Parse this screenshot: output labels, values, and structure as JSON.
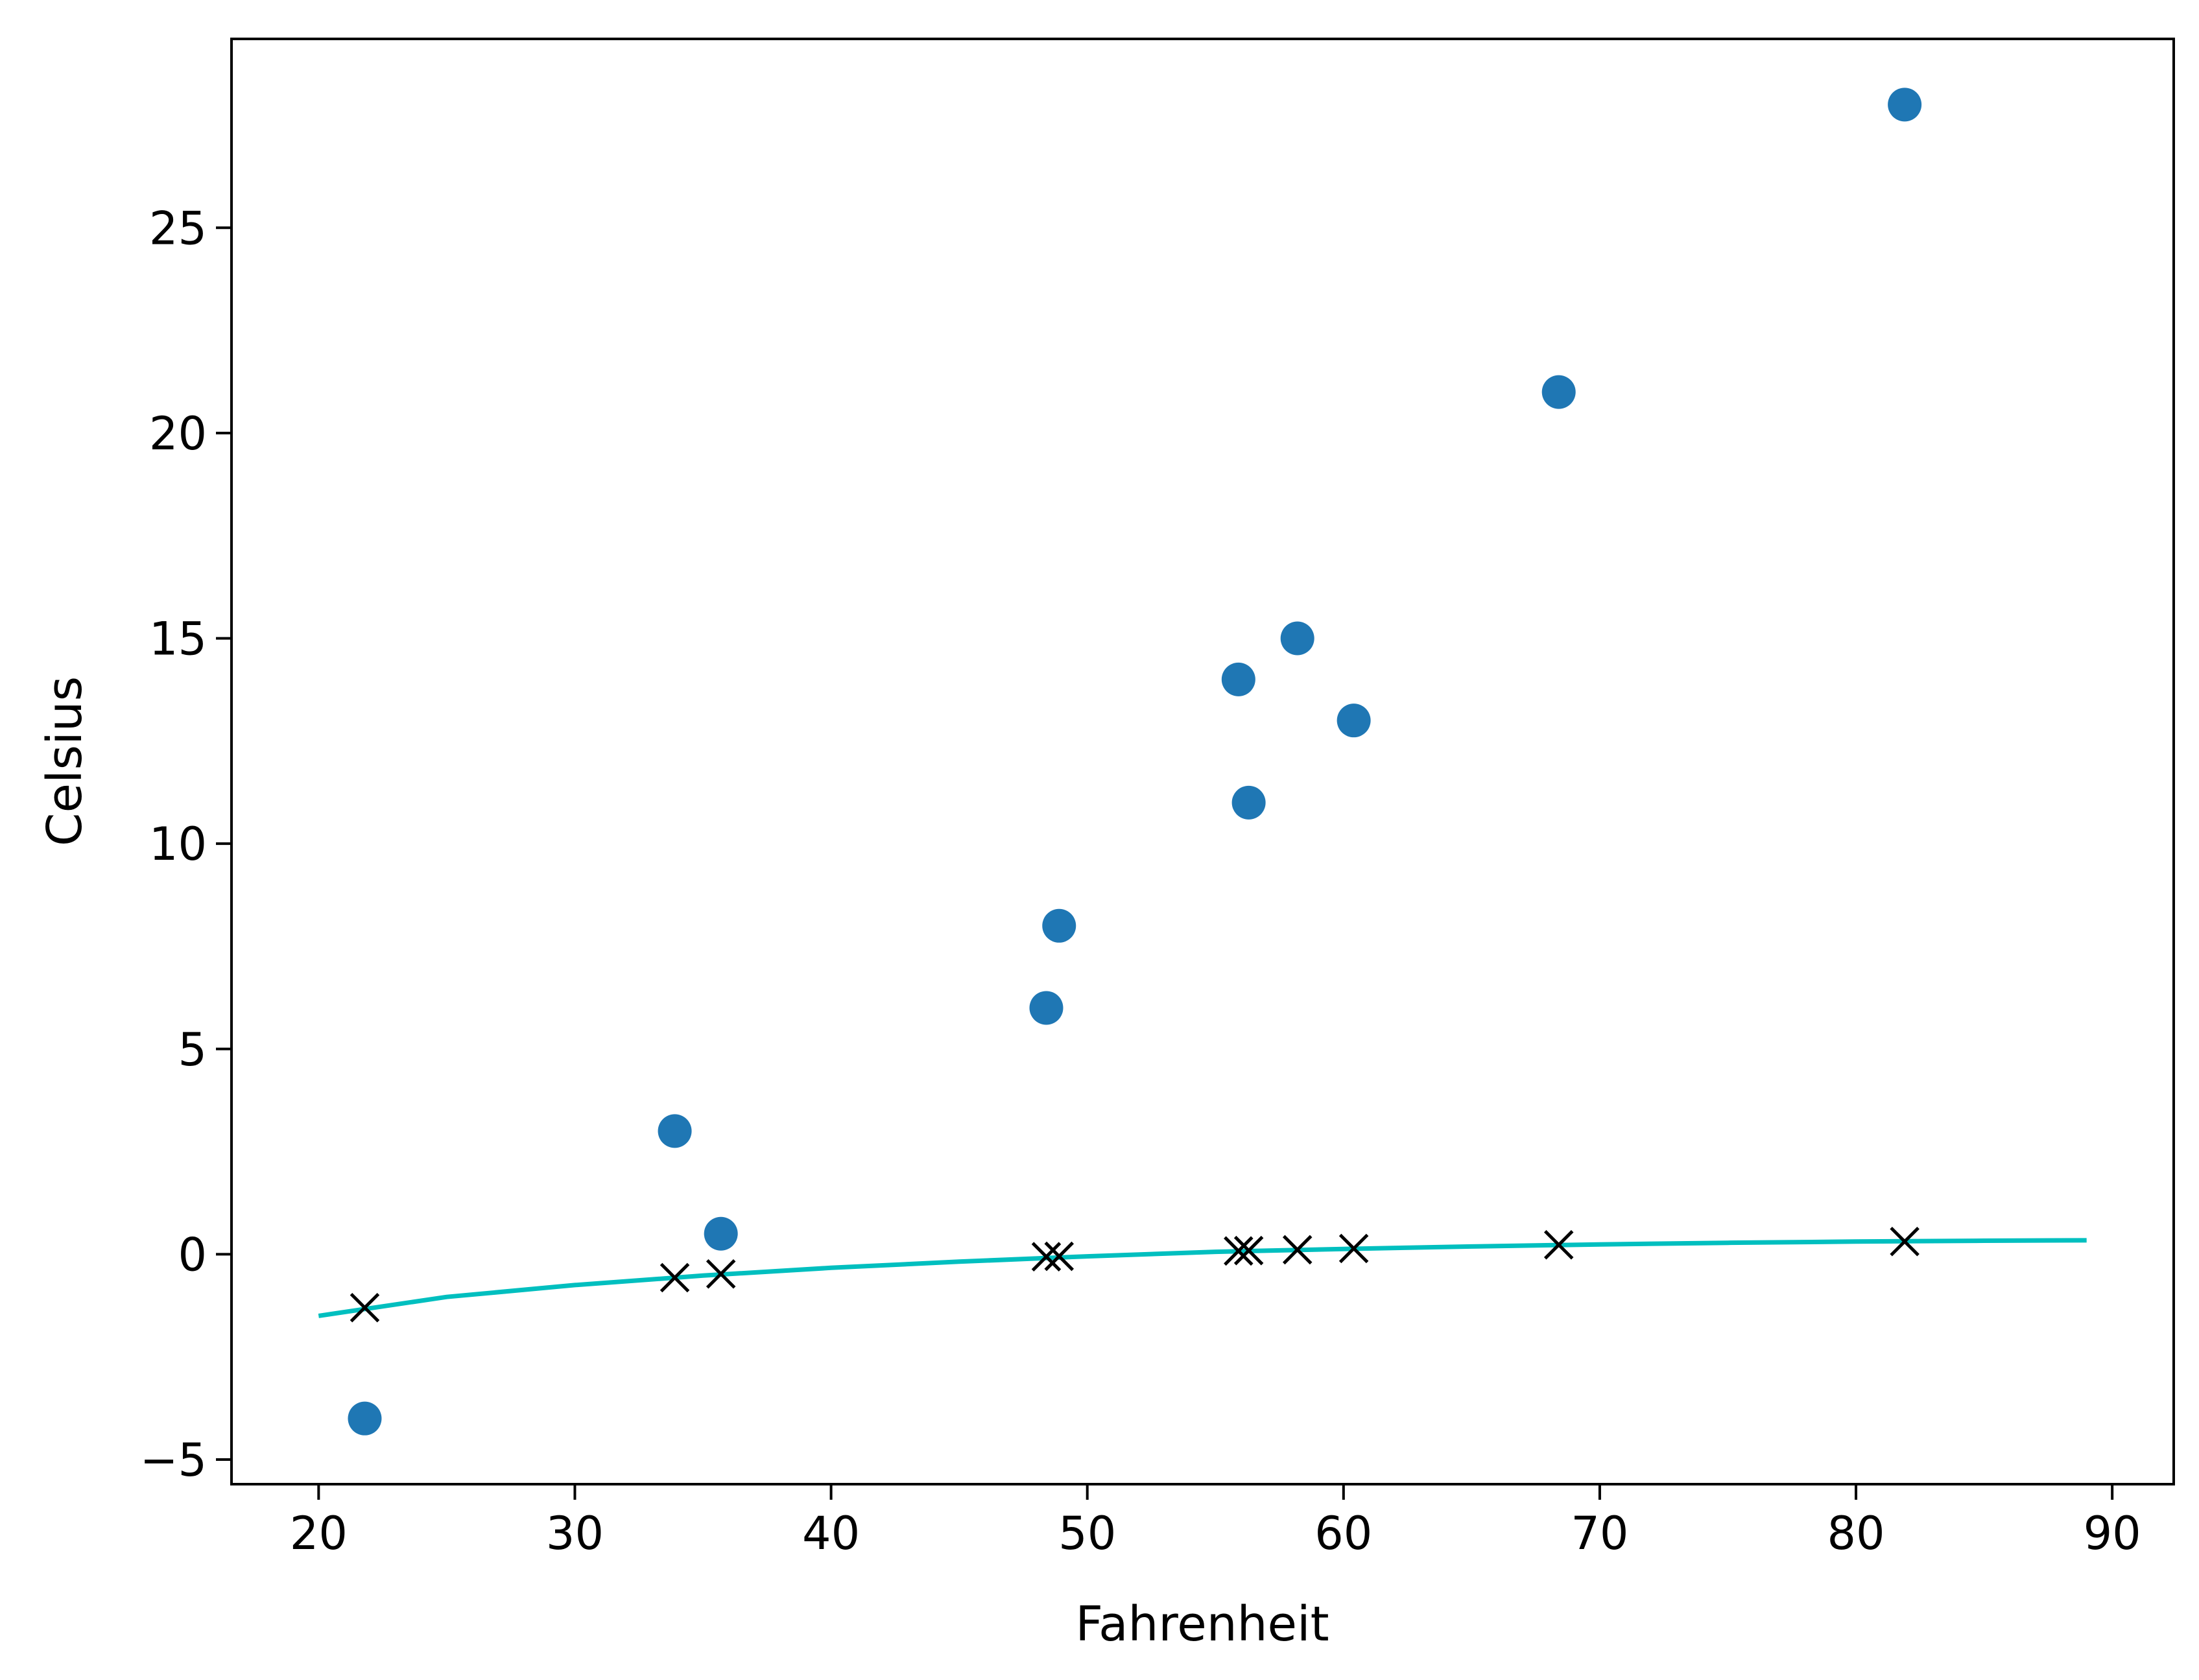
{
  "chart_data": {
    "type": "scatter",
    "xlabel": "Fahrenheit",
    "ylabel": "Celsius",
    "xlim": [
      16.6,
      92.4
    ],
    "ylim": [
      -5.6,
      29.6
    ],
    "xticks": [
      20,
      30,
      40,
      50,
      60,
      70,
      80,
      90
    ],
    "yticks": [
      -5,
      0,
      5,
      10,
      15,
      20,
      25
    ],
    "grid": false,
    "series": [
      {
        "marker": "circle",
        "color": "#1f77b4",
        "points": [
          {
            "x": 21.8,
            "y": -4.0
          },
          {
            "x": 33.9,
            "y": 3.0
          },
          {
            "x": 35.7,
            "y": 0.5
          },
          {
            "x": 48.4,
            "y": 6.0
          },
          {
            "x": 48.9,
            "y": 8.0
          },
          {
            "x": 55.9,
            "y": 14.0
          },
          {
            "x": 56.3,
            "y": 11.0
          },
          {
            "x": 58.2,
            "y": 15.0
          },
          {
            "x": 60.4,
            "y": 13.0
          },
          {
            "x": 68.4,
            "y": 21.0
          },
          {
            "x": 81.9,
            "y": 28.0
          }
        ]
      },
      {
        "marker": "x",
        "color": "#000000",
        "points": [
          {
            "x": 21.8,
            "y": -1.3
          },
          {
            "x": 33.9,
            "y": -0.57
          },
          {
            "x": 35.7,
            "y": -0.48
          },
          {
            "x": 48.4,
            "y": -0.06
          },
          {
            "x": 48.9,
            "y": -0.05
          },
          {
            "x": 55.9,
            "y": 0.08
          },
          {
            "x": 56.3,
            "y": 0.09
          },
          {
            "x": 58.2,
            "y": 0.11
          },
          {
            "x": 60.4,
            "y": 0.14
          },
          {
            "x": 68.4,
            "y": 0.23
          },
          {
            "x": 81.9,
            "y": 0.31
          }
        ]
      },
      {
        "marker": "line",
        "color": "#00bfbf",
        "points": [
          {
            "x": 20,
            "y": -1.5
          },
          {
            "x": 25,
            "y": -1.04
          },
          {
            "x": 30,
            "y": -0.75
          },
          {
            "x": 35,
            "y": -0.52
          },
          {
            "x": 40,
            "y": -0.33
          },
          {
            "x": 45,
            "y": -0.18
          },
          {
            "x": 50,
            "y": -0.05
          },
          {
            "x": 55,
            "y": 0.06
          },
          {
            "x": 60,
            "y": 0.13
          },
          {
            "x": 65,
            "y": 0.19
          },
          {
            "x": 70,
            "y": 0.24
          },
          {
            "x": 75,
            "y": 0.28
          },
          {
            "x": 80,
            "y": 0.31
          },
          {
            "x": 85,
            "y": 0.33
          },
          {
            "x": 89,
            "y": 0.34
          }
        ]
      }
    ]
  }
}
